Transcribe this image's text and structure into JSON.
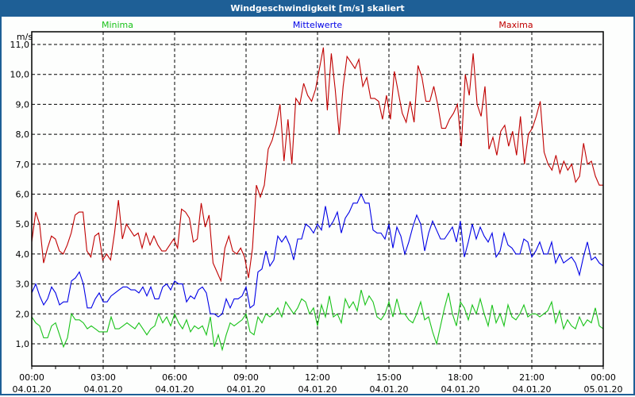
{
  "window": {
    "title": "Windgeschwindigkeit [m/s] skaliert"
  },
  "chart_data": {
    "type": "line",
    "title": "Windgeschwindigkeit [m/s] skaliert",
    "ylabel": "m/s",
    "xlabel": "",
    "ylim": [
      0.25,
      11.4
    ],
    "xlim_hours": [
      0,
      24
    ],
    "yticks": [
      1,
      2,
      3,
      4,
      5,
      6,
      7,
      8,
      9,
      10,
      11
    ],
    "ytick_labels": [
      "1,0",
      "2,0",
      "3,0",
      "4,0",
      "5,0",
      "6,0",
      "7,0",
      "8,0",
      "9,0",
      "10,0",
      "11,0"
    ],
    "xticks_hours": [
      0,
      3,
      6,
      9,
      12,
      15,
      18,
      21,
      24
    ],
    "xtick_labels": [
      [
        "00:00",
        "04.01.20"
      ],
      [
        "03:00",
        "04.01.20"
      ],
      [
        "06:00",
        "04.01.20"
      ],
      [
        "09:00",
        "04.01.20"
      ],
      [
        "12:00",
        "04.01.20"
      ],
      [
        "15:00",
        "04.01.20"
      ],
      [
        "18:00",
        "04.01.20"
      ],
      [
        "21:00",
        "04.01.20"
      ],
      [
        "00:00",
        "05.01.20"
      ]
    ],
    "grid": true,
    "legend_position": "top",
    "series": [
      {
        "name": "Minima",
        "color": "#19c219",
        "values": [
          1.9,
          1.7,
          1.6,
          1.2,
          1.2,
          1.6,
          1.7,
          1.3,
          0.9,
          1.2,
          2.0,
          1.8,
          1.8,
          1.7,
          1.5,
          1.6,
          1.5,
          1.4,
          1.4,
          1.4,
          1.9,
          1.5,
          1.5,
          1.6,
          1.7,
          1.6,
          1.5,
          1.7,
          1.5,
          1.3,
          1.5,
          1.6,
          2.0,
          1.7,
          1.9,
          1.6,
          2.0,
          1.7,
          1.5,
          1.8,
          1.4,
          1.6,
          1.5,
          1.6,
          1.3,
          1.9,
          0.9,
          1.3,
          0.8,
          1.3,
          1.7,
          1.6,
          1.7,
          1.8,
          2.0,
          1.4,
          1.3,
          1.9,
          1.7,
          2.0,
          1.9,
          2.0,
          2.2,
          1.9,
          2.4,
          2.2,
          2.0,
          2.2,
          2.5,
          2.4,
          2.0,
          2.2,
          1.6,
          2.3,
          1.9,
          2.6,
          1.9,
          2.0,
          1.7,
          2.5,
          2.2,
          2.4,
          2.1,
          2.8,
          2.3,
          2.6,
          2.4,
          1.9,
          1.8,
          2.0,
          2.4,
          1.9,
          2.5,
          2.0,
          2.0,
          1.8,
          1.7,
          2.0,
          2.4,
          1.8,
          1.9,
          1.4,
          1.0,
          1.6,
          2.2,
          2.7,
          2.0,
          1.6,
          2.4,
          2.2,
          1.8,
          2.3,
          2.0,
          2.5,
          2.0,
          1.6,
          2.3,
          1.7,
          2.0,
          1.6,
          2.3,
          1.9,
          1.8,
          2.0,
          2.3,
          1.9,
          2.0,
          2.0,
          1.9,
          2.0,
          2.1,
          2.4,
          1.7,
          2.1,
          1.5,
          1.8,
          1.6,
          1.5,
          1.9,
          1.6,
          1.8,
          1.7,
          2.2,
          1.6,
          1.5
        ]
      },
      {
        "name": "Mittelwerte",
        "color": "#0000e6",
        "values": [
          2.7,
          3.0,
          2.6,
          2.3,
          2.5,
          2.9,
          2.7,
          2.3,
          2.4,
          2.4,
          3.1,
          3.2,
          3.4,
          3.0,
          2.2,
          2.2,
          2.5,
          2.7,
          2.4,
          2.4,
          2.6,
          2.7,
          2.8,
          2.9,
          2.9,
          2.8,
          2.8,
          2.7,
          2.9,
          2.6,
          2.9,
          2.5,
          2.5,
          2.9,
          3.0,
          2.8,
          3.1,
          3.0,
          3.0,
          2.4,
          2.6,
          2.5,
          2.8,
          2.9,
          2.7,
          2.0,
          2.0,
          1.9,
          2.0,
          2.5,
          2.2,
          2.5,
          2.5,
          2.6,
          2.9,
          2.2,
          2.3,
          3.4,
          3.5,
          4.1,
          3.6,
          3.8,
          4.6,
          4.4,
          4.6,
          4.3,
          3.8,
          4.5,
          4.5,
          5.0,
          4.9,
          4.7,
          5.0,
          4.8,
          5.6,
          4.9,
          5.1,
          5.4,
          4.7,
          5.2,
          5.4,
          5.7,
          5.7,
          6.0,
          5.7,
          5.7,
          4.8,
          4.7,
          4.7,
          4.5,
          5.0,
          4.2,
          4.9,
          4.6,
          4.0,
          4.4,
          4.9,
          5.3,
          5.0,
          4.1,
          4.7,
          5.1,
          4.8,
          4.5,
          4.5,
          4.7,
          4.9,
          4.4,
          5.1,
          3.9,
          4.4,
          5.0,
          4.5,
          4.9,
          4.6,
          4.4,
          4.7,
          3.9,
          4.1,
          4.7,
          4.3,
          4.2,
          4.0,
          4.0,
          4.5,
          4.4,
          3.9,
          4.1,
          4.4,
          4.0,
          4.0,
          4.4,
          3.7,
          4.0,
          3.7,
          3.8,
          3.9,
          3.7,
          3.3,
          3.9,
          4.4,
          3.8,
          3.9,
          3.7,
          3.6
        ]
      },
      {
        "name": "Maxima",
        "color": "#c00000",
        "values": [
          4.4,
          5.4,
          5.0,
          3.7,
          4.2,
          4.6,
          4.5,
          4.1,
          4.0,
          4.3,
          4.7,
          5.3,
          5.4,
          5.4,
          4.1,
          3.9,
          4.6,
          4.7,
          3.8,
          4.0,
          3.8,
          4.7,
          5.8,
          4.5,
          5.0,
          4.8,
          4.6,
          4.7,
          4.2,
          4.7,
          4.3,
          4.6,
          4.3,
          4.1,
          4.1,
          4.3,
          4.5,
          4.2,
          5.5,
          5.4,
          5.2,
          4.4,
          4.5,
          5.7,
          4.9,
          5.3,
          3.7,
          3.4,
          3.1,
          4.2,
          4.6,
          4.1,
          4.0,
          4.2,
          3.9,
          3.2,
          4.2,
          6.3,
          5.9,
          6.3,
          7.5,
          7.8,
          8.3,
          9.0,
          7.1,
          8.5,
          7.0,
          9.2,
          9.0,
          9.7,
          9.3,
          9.1,
          9.5,
          10.2,
          10.9,
          8.8,
          10.7,
          9.5,
          8.0,
          9.6,
          10.6,
          10.4,
          10.2,
          10.5,
          9.6,
          9.9,
          9.2,
          9.2,
          9.1,
          8.5,
          9.3,
          8.5,
          10.1,
          9.4,
          8.7,
          8.4,
          9.1,
          8.4,
          10.3,
          9.9,
          9.1,
          9.1,
          9.6,
          9.0,
          8.2,
          8.2,
          8.5,
          8.7,
          9.0,
          7.6,
          10.0,
          9.3,
          10.7,
          9.0,
          8.6,
          9.6,
          7.5,
          7.9,
          7.3,
          8.1,
          8.3,
          7.6,
          8.1,
          7.3,
          8.6,
          7.0,
          8.0,
          8.2,
          8.6,
          9.1,
          7.4,
          7.0,
          6.8,
          7.3,
          6.7,
          7.1,
          6.8,
          7.0,
          6.4,
          6.6,
          7.7,
          7.0,
          7.1,
          6.6,
          6.3,
          6.3
        ]
      }
    ]
  }
}
